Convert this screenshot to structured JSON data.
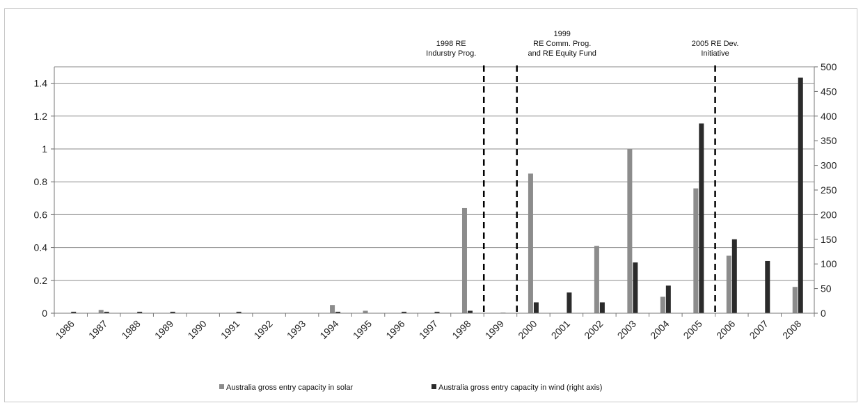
{
  "chart_data": {
    "type": "bar",
    "title": "",
    "xlabel": "",
    "ylabel": "",
    "categories": [
      "1986",
      "1987",
      "1988",
      "1989",
      "1990",
      "1991",
      "1992",
      "1993",
      "1994",
      "1995",
      "1996",
      "1997",
      "1998",
      "1999",
      "2000",
      "2001",
      "2002",
      "2003",
      "2004",
      "2005",
      "2006",
      "2007",
      "2008"
    ],
    "series": [
      {
        "name": "Australia gross entry capacity in solar",
        "axis": "left",
        "color": "#8c8c8c",
        "values": [
          0,
          0.02,
          0,
          0,
          0,
          0,
          0,
          0,
          0.05,
          0.015,
          0,
          0,
          0.64,
          0,
          0.85,
          0,
          0.41,
          1.0,
          0.1,
          0.76,
          0.35,
          0,
          0.16
        ]
      },
      {
        "name": "Australia gross entry capacity in wind (right axis)",
        "axis": "right",
        "color": "#2b2b2b",
        "values": [
          3,
          3,
          3,
          3,
          0,
          3,
          0,
          0,
          3,
          0,
          3,
          3,
          5,
          1,
          22,
          42,
          22,
          103,
          56,
          385,
          150,
          106,
          478
        ]
      }
    ],
    "ylim_left": [
      0,
      1.5
    ],
    "yticks_left": [
      "0",
      "0.2",
      "0.4",
      "0.6",
      "0.8",
      "1",
      "1.2",
      "1.4"
    ],
    "ylim_right": [
      0,
      500
    ],
    "yticks_right": [
      "0",
      "50",
      "100",
      "150",
      "200",
      "250",
      "300",
      "350",
      "400",
      "450",
      "500"
    ],
    "grid": true,
    "legend_position": "bottom",
    "annotations": [
      {
        "after_category": "1998",
        "lines": [
          "1998 RE",
          "Indurstry Prog."
        ]
      },
      {
        "after_category": "1999",
        "lines": [
          "1999",
          "RE Comm. Prog.",
          "and RE Equity Fund"
        ]
      },
      {
        "after_category": "2005",
        "lines": [
          "2005 RE Dev.",
          "Initiative"
        ]
      }
    ]
  }
}
